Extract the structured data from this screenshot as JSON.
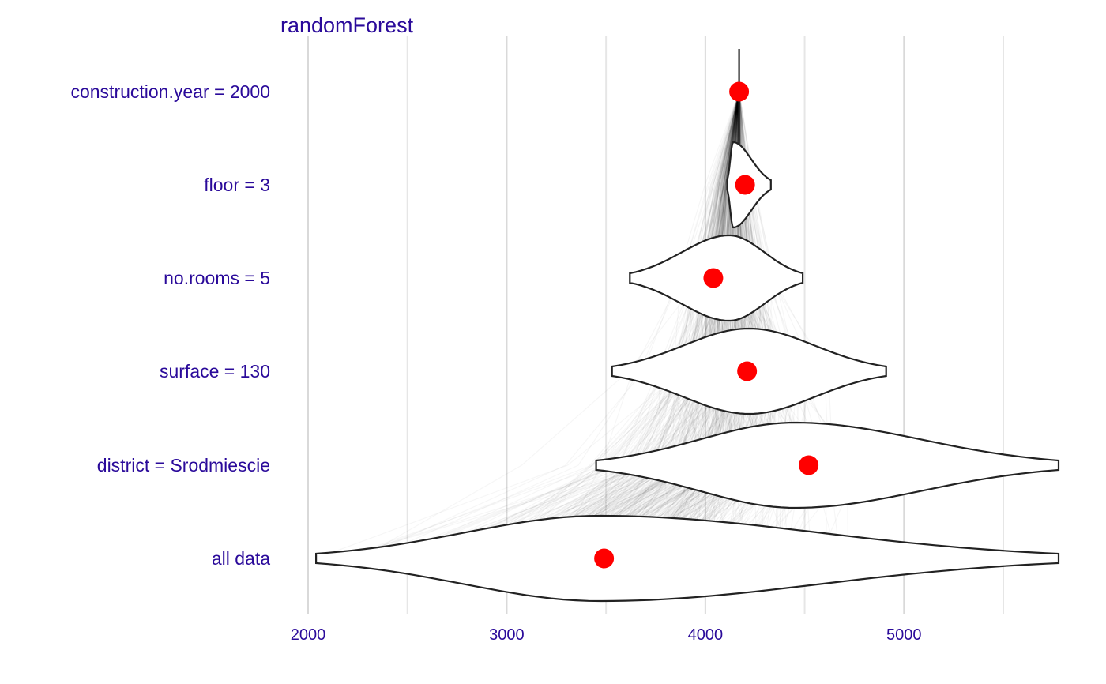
{
  "chart_data": {
    "type": "violin",
    "title": "randomForest",
    "xlabel": "",
    "ylabel": "",
    "xlim": [
      1950,
      5780
    ],
    "x_ticks": [
      2000,
      3000,
      4000,
      5000
    ],
    "grid": true,
    "rows": [
      {
        "label": "all data",
        "point": 3490,
        "range": [
          2040,
          5780
        ],
        "peak": 3470
      },
      {
        "label": "district = Srodmiescie",
        "point": 4520,
        "range": [
          3450,
          5780
        ],
        "peak": 4450
      },
      {
        "label": "surface = 130",
        "point": 4210,
        "range": [
          3530,
          4910
        ],
        "peak": 4220
      },
      {
        "label": "no.rooms = 5",
        "point": 4040,
        "range": [
          3620,
          4490
        ],
        "peak": 4120
      },
      {
        "label": "floor = 3",
        "point": 4200,
        "range": [
          4110,
          4330
        ],
        "peak": 4140
      },
      {
        "label": "construction.year = 2000",
        "point": 4170,
        "range": [
          4170,
          4170
        ],
        "peak": 4170
      }
    ],
    "colors": {
      "point": "#ff0000",
      "text": "#2a0a9a",
      "outline": "#222222"
    }
  }
}
